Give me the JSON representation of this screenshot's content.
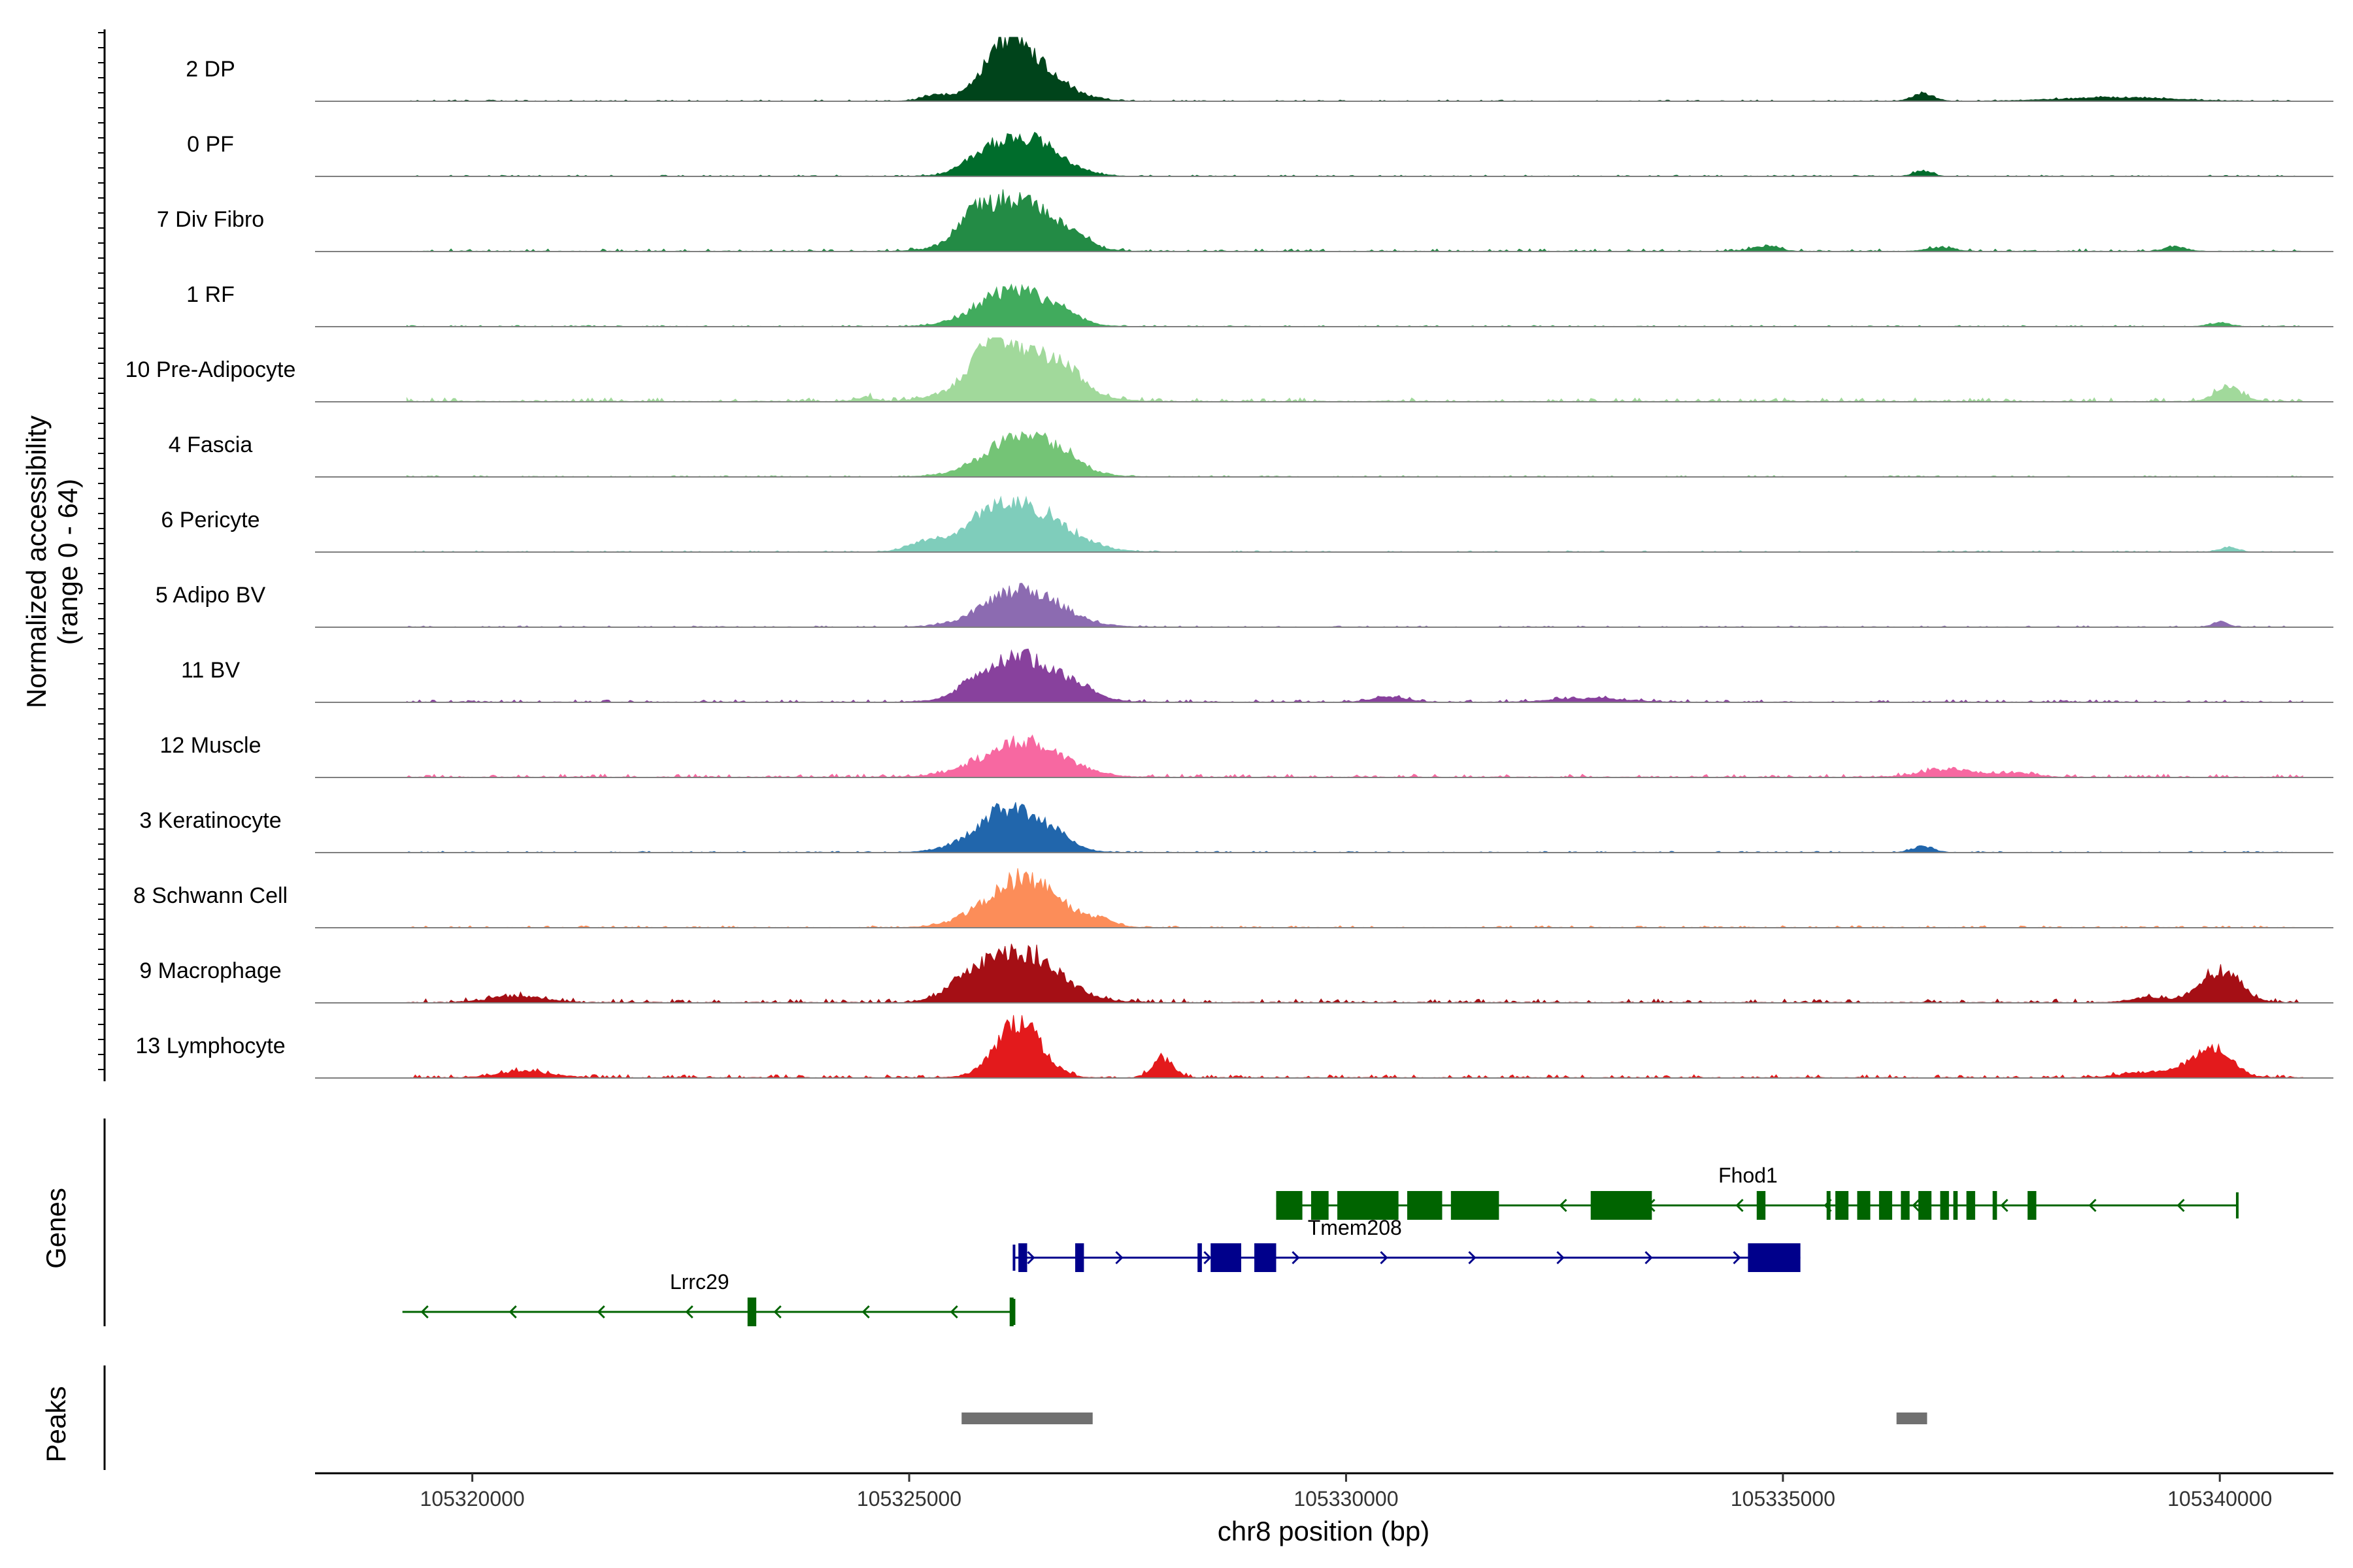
{
  "chart_data": {
    "type": "area",
    "x_axis": {
      "label": "chr8 position (bp)",
      "range": [
        105318200,
        105341300
      ],
      "ticks": [
        105320000,
        105325000,
        105330000,
        105335000,
        105340000
      ],
      "tick_labels": [
        "105320000",
        "105325000",
        "105330000",
        "105335000",
        "105340000"
      ]
    },
    "coverage_panel": {
      "ylabel_line1": "Normalized accessibility",
      "ylabel_line2": "(range 0 - 64)",
      "y_range": [
        0,
        64
      ],
      "tracks": [
        {
          "name": "2 DP",
          "color": "#00441b",
          "peaks": [
            [
              105326300,
              0.65,
              380
            ],
            [
              105326100,
              0.45,
              200
            ],
            [
              105325300,
              0.08,
              150
            ],
            [
              105336600,
              0.12,
              120
            ],
            [
              105338800,
              0.06,
              600
            ]
          ],
          "noise": 0.02
        },
        {
          "name": "0 PF",
          "color": "#006d2c",
          "peaks": [
            [
              105326300,
              0.62,
              380
            ],
            [
              105325800,
              0.12,
              200
            ],
            [
              105336600,
              0.09,
              100
            ]
          ],
          "noise": 0.02
        },
        {
          "name": "7 Div Fibro",
          "color": "#238b45",
          "peaks": [
            [
              105326200,
              0.82,
              420
            ],
            [
              105325700,
              0.22,
              150
            ],
            [
              105326900,
              0.15,
              150
            ],
            [
              105334800,
              0.08,
              150
            ],
            [
              105336800,
              0.06,
              150
            ],
            [
              105339500,
              0.07,
              120
            ]
          ],
          "noise": 0.04
        },
        {
          "name": "1 RF",
          "color": "#41ab5d",
          "peaks": [
            [
              105326200,
              0.58,
              400
            ],
            [
              105326800,
              0.1,
              150
            ],
            [
              105340000,
              0.06,
              120
            ]
          ],
          "noise": 0.02
        },
        {
          "name": "10 Pre-Adipocyte",
          "color": "#a1d99b",
          "peaks": [
            [
              105326250,
              0.78,
              480
            ],
            [
              105325900,
              0.4,
              160
            ],
            [
              105326800,
              0.18,
              160
            ],
            [
              105324500,
              0.07,
              100
            ],
            [
              105340100,
              0.22,
              150
            ]
          ],
          "noise": 0.06
        },
        {
          "name": "4 Fascia",
          "color": "#74c476",
          "peaks": [
            [
              105326300,
              0.62,
              420
            ],
            [
              105326800,
              0.12,
              150
            ]
          ],
          "noise": 0.02
        },
        {
          "name": "6 Pericyte",
          "color": "#7fcdbb",
          "peaks": [
            [
              105326300,
              0.72,
              460
            ],
            [
              105325200,
              0.15,
              200
            ],
            [
              105325800,
              0.2,
              200
            ],
            [
              105340100,
              0.07,
              100
            ]
          ],
          "noise": 0.02
        },
        {
          "name": "5 Adipo BV",
          "color": "#8c6bb1",
          "peaks": [
            [
              105326300,
              0.58,
              430
            ],
            [
              105340000,
              0.08,
              90
            ]
          ],
          "noise": 0.02
        },
        {
          "name": "11 BV",
          "color": "#88419d",
          "peaks": [
            [
              105326300,
              0.7,
              420
            ],
            [
              105325700,
              0.12,
              150
            ],
            [
              105327000,
              0.08,
              200
            ],
            [
              105330500,
              0.08,
              200
            ],
            [
              105332800,
              0.06,
              400
            ]
          ],
          "noise": 0.04
        },
        {
          "name": "12 Muscle",
          "color": "#f768a1",
          "peaks": [
            [
              105326300,
              0.55,
              450
            ],
            [
              105336900,
              0.12,
              300
            ],
            [
              105337700,
              0.06,
              200
            ]
          ],
          "noise": 0.05
        },
        {
          "name": "3 Keratinocyte",
          "color": "#2166ac",
          "peaks": [
            [
              105326150,
              0.68,
              380
            ],
            [
              105326700,
              0.14,
              150
            ],
            [
              105336600,
              0.1,
              120
            ]
          ],
          "noise": 0.02
        },
        {
          "name": "8 Schwann Cell",
          "color": "#fc8d59",
          "peaks": [
            [
              105326300,
              0.75,
              420
            ],
            [
              105327200,
              0.08,
              150
            ]
          ],
          "noise": 0.03
        },
        {
          "name": "9 Macrophage",
          "color": "#a50f15",
          "peaks": [
            [
              105326300,
              0.76,
              420
            ],
            [
              105325700,
              0.25,
              250
            ],
            [
              105340000,
              0.5,
              220
            ],
            [
              105320500,
              0.1,
              300
            ],
            [
              105339200,
              0.08,
              200
            ]
          ],
          "noise": 0.06
        },
        {
          "name": "13 Lymphocyte",
          "color": "#e31a1c",
          "peaks": [
            [
              105326250,
              0.85,
              260
            ],
            [
              105327900,
              0.3,
              120
            ],
            [
              105339900,
              0.48,
              220
            ],
            [
              105320600,
              0.1,
              300
            ],
            [
              105339200,
              0.09,
              300
            ]
          ],
          "noise": 0.05
        }
      ]
    },
    "genes_panel": {
      "ylabel": "Genes",
      "genes": [
        {
          "name": "Fhod1",
          "strand": "-",
          "color": "#006400",
          "row": 0,
          "start": 105329200,
          "end": 105340200,
          "exons": [
            [
              105329200,
              105329500
            ],
            [
              105329600,
              105329800
            ],
            [
              105329900,
              105330600
            ],
            [
              105330700,
              105331100
            ],
            [
              105331200,
              105331750
            ],
            [
              105332800,
              105333500
            ],
            [
              105334700,
              105334800
            ],
            [
              105335500,
              105335510
            ],
            [
              105335600,
              105335750
            ],
            [
              105335850,
              105336000
            ],
            [
              105336100,
              105336250
            ],
            [
              105336350,
              105336450
            ],
            [
              105336550,
              105336700
            ],
            [
              105336800,
              105336900
            ],
            [
              105336950,
              105337000
            ],
            [
              105337100,
              105337200
            ],
            [
              105337400,
              105337450
            ],
            [
              105337800,
              105337900
            ]
          ],
          "label_x": 105334600
        },
        {
          "name": "Tmem208",
          "strand": "+",
          "color": "#00008b",
          "row": 1,
          "start": 105326200,
          "end": 105335200,
          "exons": [
            [
              105326250,
              105326350
            ],
            [
              105326900,
              105327000
            ],
            [
              105328300,
              105328350
            ],
            [
              105328450,
              105328800
            ],
            [
              105328950,
              105329200
            ],
            [
              105334600,
              105335200
            ]
          ],
          "label_x": 105330100
        },
        {
          "name": "Lrrc29",
          "strand": "-",
          "color": "#006400",
          "row": 2,
          "start": 105319200,
          "end": 105326200,
          "exons": [
            [
              105323150,
              105323250
            ],
            [
              105326150,
              105326170
            ]
          ],
          "label_x": 105322600
        }
      ]
    },
    "peaks_panel": {
      "ylabel": "Peaks",
      "color": "#707070",
      "regions": [
        [
          105325600,
          105327100
        ],
        [
          105336300,
          105336650
        ]
      ]
    }
  }
}
